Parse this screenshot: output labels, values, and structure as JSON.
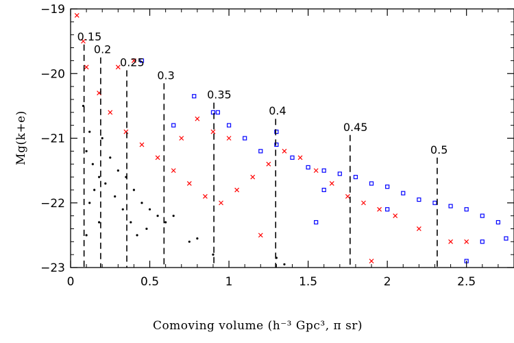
{
  "chart_data": {
    "type": "scatter",
    "xlabel": "Comoving volume (h⁻³ Gpc³, π sr)",
    "ylabel": "Mg(k+e)",
    "xlim": [
      0,
      2.8
    ],
    "ylim": [
      -19,
      -23
    ],
    "y_inverted": true,
    "x_ticks": [
      0,
      0.5,
      1,
      1.5,
      2,
      2.5
    ],
    "x_tick_labels": [
      "0",
      "0.5",
      "1",
      "1.5",
      "2",
      "2.5"
    ],
    "y_ticks": [
      -19,
      -20,
      -21,
      -22,
      -23
    ],
    "y_tick_labels": [
      "−19",
      "−20",
      "−21",
      "−22",
      "−23"
    ],
    "grid": false,
    "legend": "none",
    "series": [
      {
        "marker": "dot",
        "color": "#000000",
        "points": [
          [
            0.08,
            -20.5
          ],
          [
            0.12,
            -20.9
          ],
          [
            0.1,
            -21.2
          ],
          [
            0.14,
            -21.4
          ],
          [
            0.18,
            -21.6
          ],
          [
            0.15,
            -21.8
          ],
          [
            0.12,
            -22.0
          ],
          [
            0.2,
            -21.0
          ],
          [
            0.25,
            -21.3
          ],
          [
            0.3,
            -21.5
          ],
          [
            0.22,
            -21.7
          ],
          [
            0.28,
            -21.9
          ],
          [
            0.35,
            -21.6
          ],
          [
            0.4,
            -21.8
          ],
          [
            0.45,
            -22.0
          ],
          [
            0.33,
            -22.1
          ],
          [
            0.38,
            -22.3
          ],
          [
            0.5,
            -22.1
          ],
          [
            0.55,
            -22.2
          ],
          [
            0.6,
            -22.3
          ],
          [
            0.48,
            -22.4
          ],
          [
            0.42,
            -22.5
          ],
          [
            0.65,
            -22.2
          ],
          [
            0.18,
            -22.3
          ],
          [
            0.1,
            -22.5
          ],
          [
            0.75,
            -22.6
          ],
          [
            0.8,
            -22.55
          ],
          [
            0.9,
            -22.8
          ],
          [
            1.3,
            -22.85
          ],
          [
            1.35,
            -22.95
          ]
        ]
      },
      {
        "marker": "x",
        "color": "#ff0000",
        "points": [
          [
            0.04,
            -19.1
          ],
          [
            0.08,
            -19.5
          ],
          [
            0.1,
            -19.9
          ],
          [
            0.18,
            -20.3
          ],
          [
            0.3,
            -19.9
          ],
          [
            0.4,
            -19.8
          ],
          [
            0.25,
            -20.6
          ],
          [
            0.35,
            -20.9
          ],
          [
            0.45,
            -21.1
          ],
          [
            0.55,
            -21.3
          ],
          [
            0.65,
            -21.5
          ],
          [
            0.75,
            -21.7
          ],
          [
            0.85,
            -21.9
          ],
          [
            0.95,
            -22.0
          ],
          [
            1.05,
            -21.8
          ],
          [
            1.15,
            -21.6
          ],
          [
            1.25,
            -21.4
          ],
          [
            1.35,
            -21.2
          ],
          [
            1.45,
            -21.3
          ],
          [
            1.55,
            -21.5
          ],
          [
            1.65,
            -21.7
          ],
          [
            1.75,
            -21.9
          ],
          [
            1.85,
            -22.0
          ],
          [
            1.95,
            -22.1
          ],
          [
            2.05,
            -22.2
          ],
          [
            2.2,
            -22.4
          ],
          [
            2.4,
            -22.6
          ],
          [
            2.5,
            -22.6
          ],
          [
            1.9,
            -22.9
          ],
          [
            1.2,
            -22.5
          ],
          [
            0.7,
            -21.0
          ],
          [
            0.8,
            -20.7
          ],
          [
            0.9,
            -20.9
          ],
          [
            1.0,
            -21.0
          ]
        ]
      },
      {
        "marker": "square",
        "color": "#0000ff",
        "points": [
          [
            0.45,
            -19.8
          ],
          [
            0.65,
            -20.8
          ],
          [
            0.78,
            -20.35
          ],
          [
            0.9,
            -20.6
          ],
          [
            1.0,
            -20.8
          ],
          [
            1.1,
            -21.0
          ],
          [
            1.2,
            -21.2
          ],
          [
            1.3,
            -21.1
          ],
          [
            1.4,
            -21.3
          ],
          [
            1.5,
            -21.45
          ],
          [
            1.6,
            -21.5
          ],
          [
            1.7,
            -21.55
          ],
          [
            1.8,
            -21.6
          ],
          [
            1.9,
            -21.7
          ],
          [
            2.0,
            -21.75
          ],
          [
            2.1,
            -21.85
          ],
          [
            2.2,
            -21.95
          ],
          [
            2.3,
            -22.0
          ],
          [
            2.4,
            -22.05
          ],
          [
            2.5,
            -22.1
          ],
          [
            2.6,
            -22.2
          ],
          [
            2.7,
            -22.3
          ],
          [
            2.75,
            -22.55
          ],
          [
            2.6,
            -22.6
          ],
          [
            2.5,
            -22.9
          ],
          [
            2.0,
            -22.1
          ],
          [
            1.3,
            -20.9
          ],
          [
            1.6,
            -21.8
          ],
          [
            1.55,
            -22.3
          ],
          [
            0.93,
            -20.6
          ]
        ]
      }
    ],
    "redshift_lines": [
      {
        "label": "0.15",
        "x": 0.085,
        "y_top": -19.55
      },
      {
        "label": "0.2",
        "x": 0.19,
        "y_top": -19.75
      },
      {
        "label": "0.25",
        "x": 0.355,
        "y_top": -19.95
      },
      {
        "label": "0.3",
        "x": 0.59,
        "y_top": -20.15
      },
      {
        "label": "0.35",
        "x": 0.905,
        "y_top": -20.45
      },
      {
        "label": "0.4",
        "x": 1.295,
        "y_top": -20.7
      },
      {
        "label": "0.45",
        "x": 1.765,
        "y_top": -20.95
      },
      {
        "label": "0.5",
        "x": 2.315,
        "y_top": -21.3
      }
    ]
  }
}
